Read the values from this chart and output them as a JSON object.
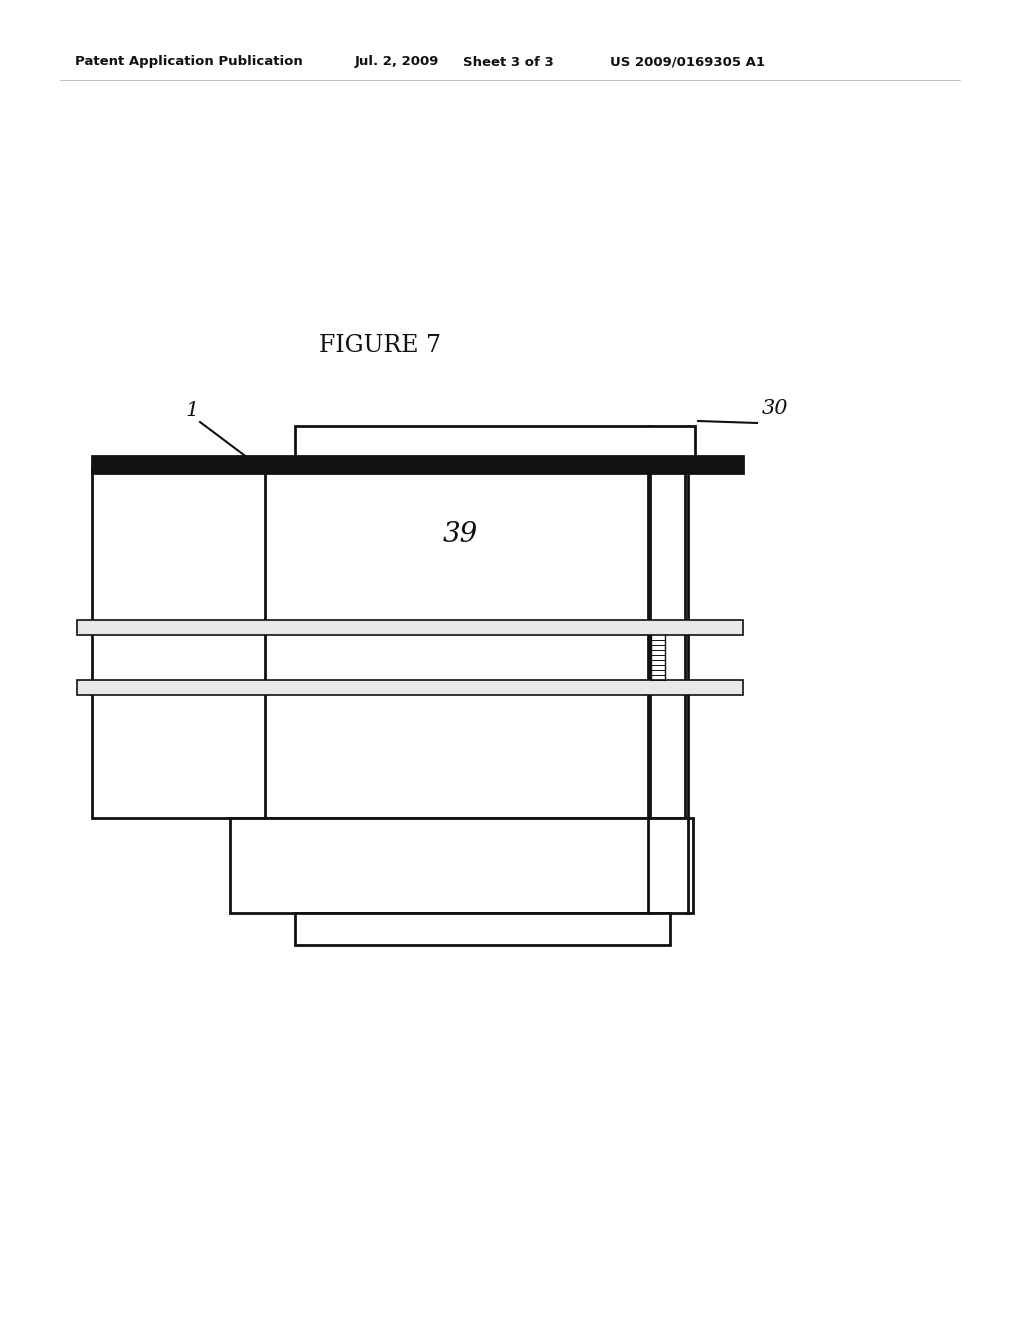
{
  "bg_color": "#ffffff",
  "header_text": "Patent Application Publication",
  "header_date": "Jul. 2, 2009",
  "header_sheet": "Sheet 3 of 3",
  "header_patent": "US 2009/0169305 A1",
  "figure_title": "FIGURE 7",
  "label_1": "1",
  "label_30": "30",
  "label_39": "39",
  "fig_width": 10.24,
  "fig_height": 13.2,
  "dpi": 100
}
